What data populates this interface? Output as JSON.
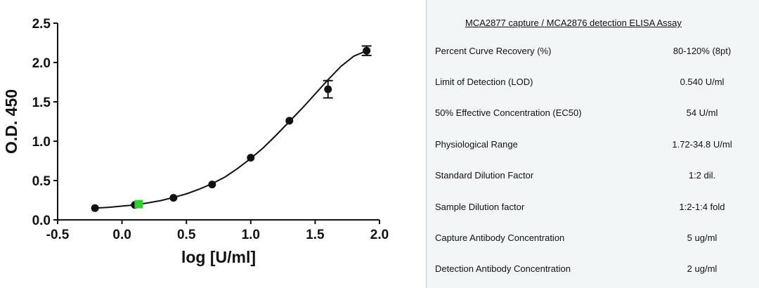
{
  "chart_data": {
    "type": "scatter",
    "xlabel": "log [U/ml]",
    "ylabel": "O.D. 450",
    "xlim": [
      -0.5,
      2.0
    ],
    "ylim": [
      0.0,
      2.5
    ],
    "x_ticks": [
      "-0.5",
      "0.0",
      "0.5",
      "1.0",
      "1.5",
      "2.0"
    ],
    "y_ticks": [
      "0.0",
      "0.5",
      "1.0",
      "1.5",
      "2.0",
      "2.5"
    ],
    "grid": false,
    "series": [
      {
        "points": [
          {
            "x": -0.21,
            "y": 0.15,
            "err": 0.01
          },
          {
            "x": 0.1,
            "y": 0.19,
            "err": 0.01
          },
          {
            "x": 0.4,
            "y": 0.28,
            "err": 0.01
          },
          {
            "x": 0.7,
            "y": 0.45,
            "err": 0.01
          },
          {
            "x": 1.0,
            "y": 0.79,
            "err": 0.01
          },
          {
            "x": 1.3,
            "y": 1.26,
            "err": 0.01
          },
          {
            "x": 1.6,
            "y": 1.66,
            "err": 0.11
          },
          {
            "x": 1.9,
            "y": 2.15,
            "err": 0.06
          }
        ],
        "color": "#111111"
      }
    ],
    "highlight": {
      "x": 0.13,
      "y": 0.2,
      "color": "#33cc33"
    },
    "fit_curve": {
      "x": [
        -0.21,
        -0.1,
        0.0,
        0.1,
        0.2,
        0.3,
        0.4,
        0.5,
        0.6,
        0.7,
        0.8,
        0.9,
        1.0,
        1.1,
        1.2,
        1.3,
        1.4,
        1.5,
        1.6,
        1.7,
        1.8,
        1.9
      ],
      "y": [
        0.15,
        0.16,
        0.175,
        0.19,
        0.215,
        0.245,
        0.285,
        0.33,
        0.39,
        0.46,
        0.545,
        0.655,
        0.78,
        0.92,
        1.08,
        1.25,
        1.42,
        1.6,
        1.78,
        1.95,
        2.08,
        2.15
      ],
      "color": "#111111"
    }
  },
  "table": {
    "title": "MCA2877 capture / MCA2876 detection ELISA Assay",
    "rows": [
      {
        "label": "Percent Curve Recovery (%)",
        "value": "80-120% (8pt)"
      },
      {
        "label": "Limit of Detection (LOD)",
        "value": "0.540 U/ml"
      },
      {
        "label": "50% Effective Concentration (EC50)",
        "value": "54 U/ml"
      },
      {
        "label": "Physiological Range",
        "value": "1.72-34.8 U/ml"
      },
      {
        "label": "Standard Dilution Factor",
        "value": "1:2 dil."
      },
      {
        "label": "Sample Dilution factor",
        "value": "1:2-1:4 fold"
      },
      {
        "label": "Capture Antibody Concentration",
        "value": "5 ug/ml"
      },
      {
        "label": "Detection Antibody Concentration",
        "value": "2 ug/ml"
      }
    ]
  },
  "colors": {
    "panel_bg": "#f3f6f7",
    "highlight": "#33cc33"
  }
}
